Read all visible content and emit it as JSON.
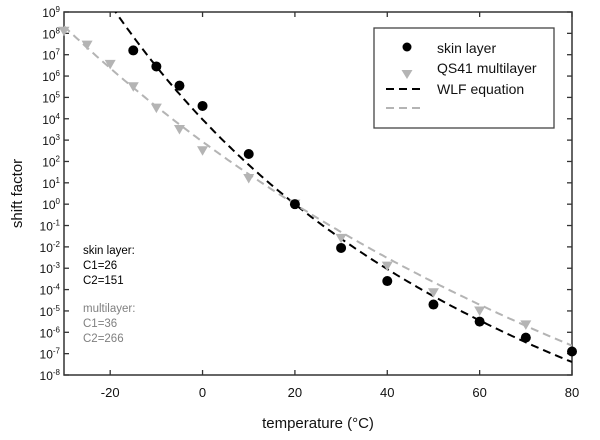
{
  "chart_data": {
    "type": "scatter",
    "title": "",
    "xlabel": "temperature (°C)",
    "ylabel": "shift factor",
    "xlim": [
      -30,
      80
    ],
    "ylim_log10": [
      -8,
      9
    ],
    "yscale": "log",
    "x_ticks": [
      -20,
      0,
      20,
      40,
      60,
      80
    ],
    "y_ticks_exponents": [
      9,
      8,
      7,
      6,
      5,
      4,
      3,
      2,
      1,
      0,
      -1,
      -2,
      -3,
      -4,
      -5,
      -6,
      -7,
      -8
    ],
    "y_tick_base": "10",
    "legend_position": "top-right",
    "series": [
      {
        "name": "skin layer",
        "marker": "circle",
        "color": "#000000",
        "x": [
          -15,
          -10,
          -5,
          0,
          10,
          20,
          30,
          40,
          50,
          60,
          70,
          80
        ],
        "log10_y": [
          7.2,
          6.45,
          5.55,
          4.6,
          2.35,
          0,
          -2.05,
          -3.6,
          -4.7,
          -5.5,
          -6.25,
          -6.9
        ]
      },
      {
        "name": "QS41 multilayer",
        "marker": "triangle-down",
        "color": "#b4b4b4",
        "x": [
          -30,
          -25,
          -20,
          -15,
          -10,
          -5,
          0,
          10,
          20,
          30,
          40,
          50,
          60,
          70
        ],
        "log10_y": [
          8.1,
          7.45,
          6.55,
          5.5,
          4.5,
          3.5,
          2.5,
          1.2,
          0,
          -1.6,
          -2.9,
          -4.15,
          -5.0,
          -5.65
        ]
      },
      {
        "name": "WLF equation",
        "type": "line",
        "dash": true,
        "color": "#000000",
        "C1": 26,
        "C2": 151,
        "Tref": 20
      },
      {
        "name": "",
        "type": "line",
        "dash": true,
        "color": "#b4b4b4",
        "C1": 36,
        "C2": 266,
        "Tref": 20
      }
    ],
    "annotations": {
      "skin": {
        "title": "skin layer:",
        "c1": "C1=26",
        "c2": "C2=151",
        "color": "#000000"
      },
      "multi": {
        "title": "multilayer:",
        "c1": "C1=36",
        "c2": "C2=266",
        "color": "#808080"
      }
    }
  }
}
